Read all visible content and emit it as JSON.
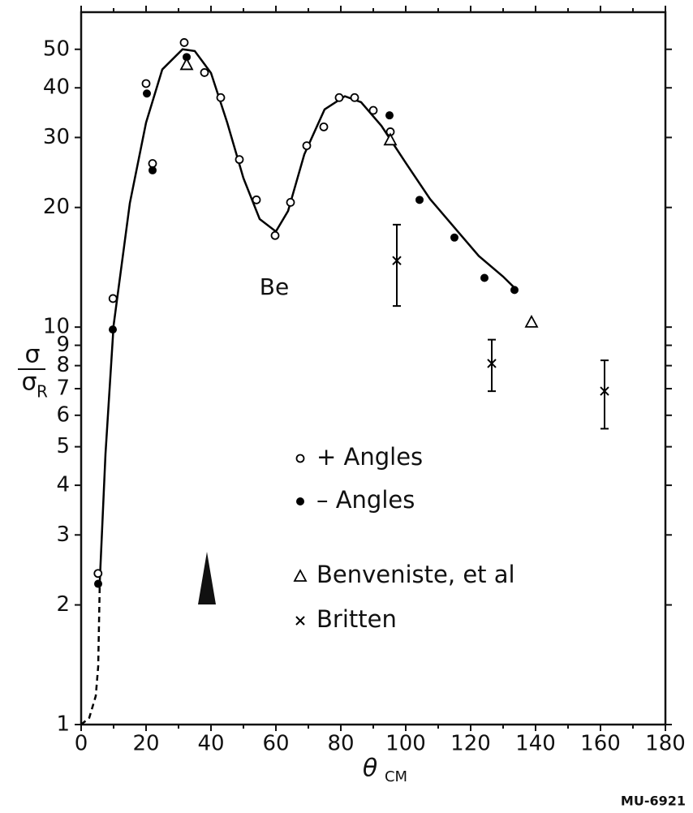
{
  "chart_data": {
    "type": "scatter",
    "ylabel_numerator": "σ",
    "ylabel_denominator": "σ",
    "ylabel_subscript": "R",
    "xlabel": "θ",
    "xlabel_subscript": "CM",
    "annotation": "Be",
    "figure_id": "MU-6921",
    "log_y": true,
    "xlim": [
      0,
      180
    ],
    "ylim": [
      1,
      62
    ],
    "xticks": [
      0,
      20,
      40,
      60,
      80,
      100,
      120,
      140,
      160,
      180
    ],
    "x_minor_ticks": [
      10,
      30,
      50,
      70,
      90,
      110,
      130,
      150,
      170
    ],
    "yticks": [
      1,
      2,
      3,
      4,
      5,
      6,
      7,
      8,
      9,
      10,
      20,
      30,
      40,
      50
    ],
    "series": [
      {
        "name": "+ Angles",
        "marker": "open-circle",
        "color": "#000000",
        "x": [
          5.2,
          9.8,
          22,
          20,
          31.75,
          38,
          43,
          48.75,
          54,
          59.75,
          64.5,
          69.5,
          74.75,
          79.5,
          84.25,
          90,
          95.25
        ],
        "values": [
          2.4,
          11.8,
          25.8,
          41,
          52,
          43.7,
          37.8,
          26.4,
          20.9,
          17,
          20.6,
          28.6,
          31.9,
          37.8,
          37.8,
          35.1,
          31
        ]
      },
      {
        "name": "– Angles",
        "marker": "filled-circle",
        "color": "#000000",
        "x": [
          5.25,
          9.75,
          22,
          20.25,
          32.5,
          95,
          104.25,
          115,
          124.25,
          133.5
        ],
        "values": [
          2.26,
          9.86,
          24.8,
          38.7,
          47.8,
          34.1,
          20.9,
          16.8,
          13.3,
          12.4
        ]
      },
      {
        "name": "Benveniste, et al",
        "marker": "open-triangle",
        "color": "#000000",
        "x": [
          32.5,
          95.25,
          138.75
        ],
        "values": [
          45.8,
          29.6,
          10.3
        ]
      },
      {
        "name": "Britten",
        "marker": "cross",
        "color": "#000000",
        "x": [
          97.25,
          126.5,
          161.25
        ],
        "values": [
          14.7,
          8.1,
          6.9
        ],
        "errors": [
          3.4,
          1.2,
          1.35
        ]
      }
    ],
    "curves": [
      {
        "style": "dashed",
        "color": "#000000",
        "x": [
          0,
          2.5,
          4.5,
          5.25,
          5.75
        ],
        "values": [
          1.0,
          1.04,
          1.18,
          1.4,
          2.3
        ]
      },
      {
        "style": "solid",
        "color": "#000000",
        "x": [
          5.75,
          7.5,
          10,
          15,
          20,
          25,
          31.25,
          35,
          40,
          45,
          50,
          55,
          60,
          63.75,
          68.75,
          75,
          81.25,
          86.25,
          92.5,
          100,
          107.5,
          115,
          122.5,
          130,
          133.75
        ],
        "values": [
          2.3,
          4.8,
          10.1,
          20.5,
          32.7,
          44.5,
          50,
          49.5,
          43.6,
          32.7,
          23.7,
          18.7,
          17.4,
          19.6,
          27.2,
          35.3,
          38.1,
          36.8,
          32.1,
          25.9,
          21,
          17.8,
          15.1,
          13.4,
          12.5
        ]
      }
    ]
  }
}
